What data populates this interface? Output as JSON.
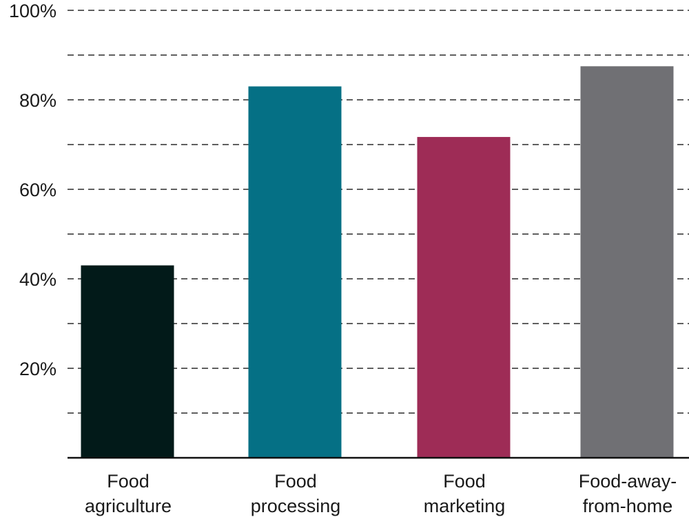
{
  "chart_data": {
    "type": "bar",
    "categories": [
      [
        "Food",
        "agriculture"
      ],
      [
        "Food",
        "processing"
      ],
      [
        "Food",
        "marketing"
      ],
      [
        "Food-away-",
        "from-home"
      ]
    ],
    "values": [
      43,
      83,
      71.7,
      87.5
    ],
    "colors": [
      "#021a19",
      "#057085",
      "#9e2c56",
      "#707074"
    ],
    "ylim": [
      0,
      100
    ],
    "yticks": [
      20,
      40,
      60,
      80,
      100
    ],
    "ytick_labels": [
      "20%",
      "40%",
      "60%",
      "80%",
      "100%"
    ],
    "minor_gridlines": [
      10,
      30,
      50,
      70,
      90
    ],
    "grid": "dashed horizontal",
    "title": "",
    "xlabel": "",
    "ylabel": ""
  }
}
